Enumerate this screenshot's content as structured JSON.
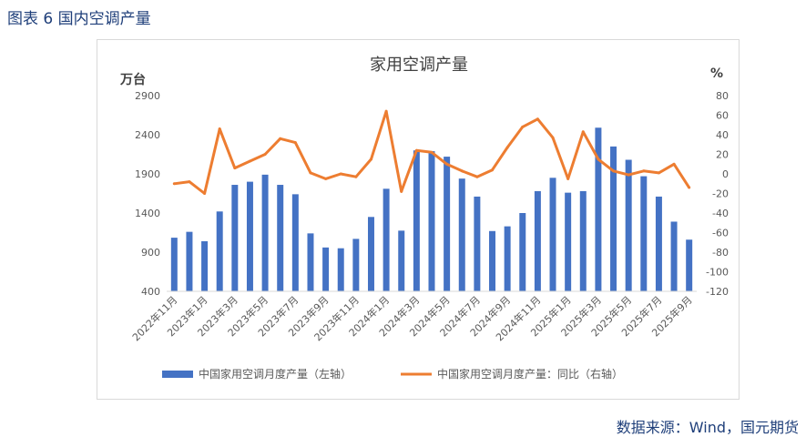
{
  "figure": {
    "title": "图表 6 国内空调产量",
    "source": "数据来源：Wind，国元期货"
  },
  "chart_data": {
    "type": "bar",
    "title": "家用空调产量",
    "left_unit": "万台",
    "right_unit": "%",
    "categories": [
      "2022年11月",
      "2022年12月",
      "2023年1月",
      "2023年2月",
      "2023年3月",
      "2023年4月",
      "2023年5月",
      "2023年6月",
      "2023年7月",
      "2023年8月",
      "2023年9月",
      "2023年10月",
      "2023年11月",
      "2023年12月",
      "2024年1月",
      "2024年2月",
      "2024年3月",
      "2024年4月",
      "2024年5月",
      "2024年6月",
      "2024年7月",
      "2024年8月",
      "2024年9月",
      "2024年10月",
      "2024年11月",
      "2024年12月",
      "2025年1月",
      "2025年2月",
      "2025年3月",
      "2025年4月",
      "2025年5月",
      "2025年6月",
      "2025年7月",
      "2025年8月",
      "2025年9月"
    ],
    "x_tick_labels": [
      "2022年11月",
      "2023年1月",
      "2023年3月",
      "2023年5月",
      "2023年7月",
      "2023年9月",
      "2023年11月",
      "2024年1月",
      "2024年3月",
      "2024年5月",
      "2024年7月",
      "2024年9月",
      "2024年11月",
      "2025年1月",
      "2025年3月",
      "2025年5月",
      "2025年7月",
      "2025年9月"
    ],
    "y_left": {
      "ylim": [
        400,
        2900
      ],
      "ticks": [
        400,
        900,
        1400,
        1900,
        2400,
        2900
      ]
    },
    "y_right": {
      "ylim": [
        -120,
        80
      ],
      "ticks": [
        -120,
        -100,
        -80,
        -60,
        -40,
        -20,
        0,
        20,
        40,
        60,
        80
      ]
    },
    "series": [
      {
        "name": "中国家用空调月度产量（左轴）",
        "type": "bar",
        "axis": "left",
        "color": "#4472c4",
        "values": [
          1085,
          1160,
          1040,
          1420,
          1760,
          1800,
          1890,
          1760,
          1640,
          1140,
          960,
          950,
          1070,
          1350,
          1710,
          1175,
          2200,
          2190,
          2120,
          1840,
          1610,
          1170,
          1230,
          1400,
          1680,
          1850,
          1660,
          1680,
          2490,
          2250,
          2080,
          1870,
          1610,
          1290,
          1060
        ]
      },
      {
        "name": "中国家用空调月度产量：同比（右轴）",
        "type": "line",
        "axis": "right",
        "color": "#ed7d31",
        "values": [
          -10,
          -8,
          -20,
          46,
          6,
          13,
          20,
          36,
          32,
          1,
          -5,
          0,
          -3,
          15,
          64,
          -18,
          24,
          22,
          10,
          3,
          -3,
          4,
          27,
          48,
          56,
          37,
          -5,
          43,
          15,
          3,
          -1,
          3,
          1,
          10,
          -14
        ]
      }
    ],
    "grid": false,
    "legend_position": "bottom"
  }
}
